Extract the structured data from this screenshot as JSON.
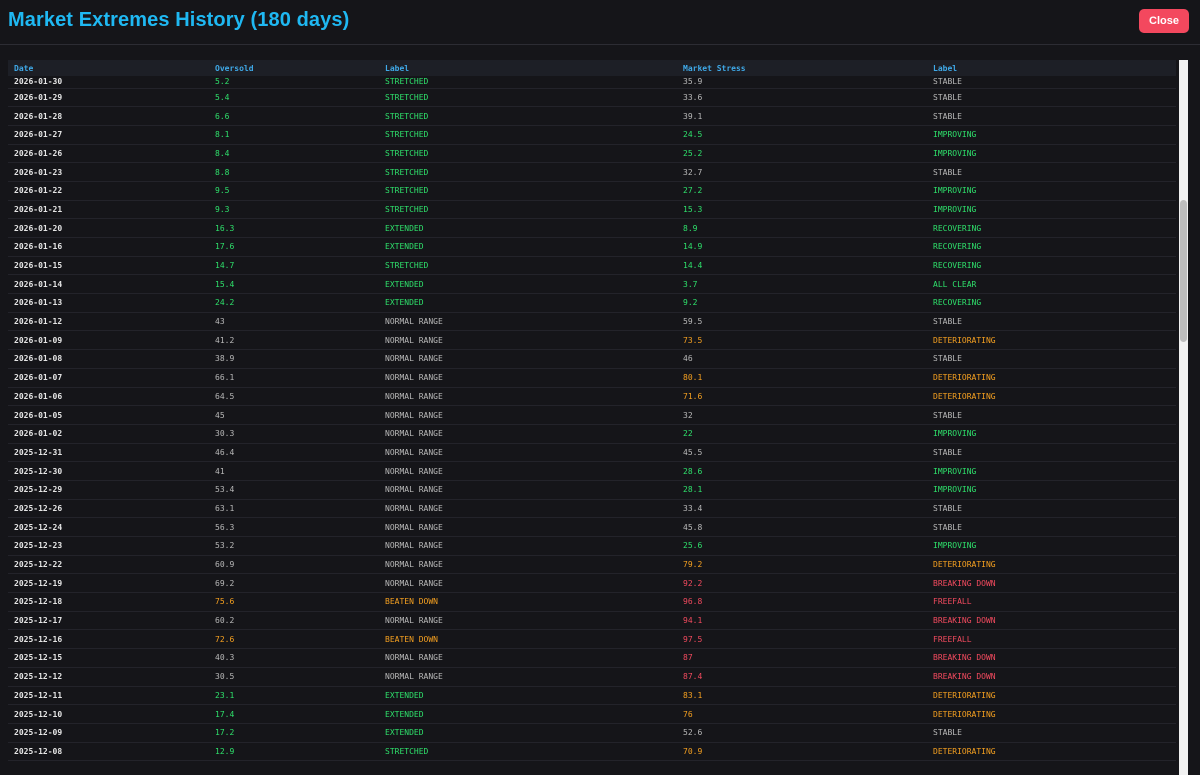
{
  "header": {
    "title": "Market Extremes History (180 days)",
    "close_label": "Close"
  },
  "table": {
    "columns": [
      "Date",
      "Oversold",
      "Label",
      "Market Stress",
      "Label"
    ],
    "rows": [
      {
        "date": "2026-01-30",
        "oversold": "5.2",
        "os_label": "STRETCHED",
        "os_color": "#2ee06b",
        "stress": "35.9",
        "st_label": "STABLE",
        "st_color": "#b8b8b8"
      },
      {
        "date": "2026-01-29",
        "oversold": "5.4",
        "os_label": "STRETCHED",
        "os_color": "#2ee06b",
        "stress": "33.6",
        "st_label": "STABLE",
        "st_color": "#b8b8b8"
      },
      {
        "date": "2026-01-28",
        "oversold": "6.6",
        "os_label": "STRETCHED",
        "os_color": "#2ee06b",
        "stress": "39.1",
        "st_label": "STABLE",
        "st_color": "#b8b8b8"
      },
      {
        "date": "2026-01-27",
        "oversold": "8.1",
        "os_label": "STRETCHED",
        "os_color": "#2ee06b",
        "stress": "24.5",
        "st_label": "IMPROVING",
        "st_color": "#2ee06b"
      },
      {
        "date": "2026-01-26",
        "oversold": "8.4",
        "os_label": "STRETCHED",
        "os_color": "#2ee06b",
        "stress": "25.2",
        "st_label": "IMPROVING",
        "st_color": "#2ee06b"
      },
      {
        "date": "2026-01-23",
        "oversold": "8.8",
        "os_label": "STRETCHED",
        "os_color": "#2ee06b",
        "stress": "32.7",
        "st_label": "STABLE",
        "st_color": "#b8b8b8"
      },
      {
        "date": "2026-01-22",
        "oversold": "9.5",
        "os_label": "STRETCHED",
        "os_color": "#2ee06b",
        "stress": "27.2",
        "st_label": "IMPROVING",
        "st_color": "#2ee06b"
      },
      {
        "date": "2026-01-21",
        "oversold": "9.3",
        "os_label": "STRETCHED",
        "os_color": "#2ee06b",
        "stress": "15.3",
        "st_label": "IMPROVING",
        "st_color": "#2ee06b"
      },
      {
        "date": "2026-01-20",
        "oversold": "16.3",
        "os_label": "EXTENDED",
        "os_color": "#2ee06b",
        "stress": "8.9",
        "st_label": "RECOVERING",
        "st_color": "#2ee06b"
      },
      {
        "date": "2026-01-16",
        "oversold": "17.6",
        "os_label": "EXTENDED",
        "os_color": "#2ee06b",
        "stress": "14.9",
        "st_label": "RECOVERING",
        "st_color": "#2ee06b"
      },
      {
        "date": "2026-01-15",
        "oversold": "14.7",
        "os_label": "STRETCHED",
        "os_color": "#2ee06b",
        "stress": "14.4",
        "st_label": "RECOVERING",
        "st_color": "#2ee06b"
      },
      {
        "date": "2026-01-14",
        "oversold": "15.4",
        "os_label": "EXTENDED",
        "os_color": "#2ee06b",
        "stress": "3.7",
        "st_label": "ALL CLEAR",
        "st_color": "#2ee06b"
      },
      {
        "date": "2026-01-13",
        "oversold": "24.2",
        "os_label": "EXTENDED",
        "os_color": "#2ee06b",
        "stress": "9.2",
        "st_label": "RECOVERING",
        "st_color": "#2ee06b"
      },
      {
        "date": "2026-01-12",
        "oversold": "43",
        "os_label": "NORMAL RANGE",
        "os_color": "#b8b8b8",
        "stress": "59.5",
        "st_label": "STABLE",
        "st_color": "#b8b8b8"
      },
      {
        "date": "2026-01-09",
        "oversold": "41.2",
        "os_label": "NORMAL RANGE",
        "os_color": "#b8b8b8",
        "stress": "73.5",
        "st_label": "DETERIORATING",
        "st_color": "#f5a020"
      },
      {
        "date": "2026-01-08",
        "oversold": "38.9",
        "os_label": "NORMAL RANGE",
        "os_color": "#b8b8b8",
        "stress": "46",
        "st_label": "STABLE",
        "st_color": "#b8b8b8"
      },
      {
        "date": "2026-01-07",
        "oversold": "66.1",
        "os_label": "NORMAL RANGE",
        "os_color": "#b8b8b8",
        "stress": "80.1",
        "st_label": "DETERIORATING",
        "st_color": "#f5a020"
      },
      {
        "date": "2026-01-06",
        "oversold": "64.5",
        "os_label": "NORMAL RANGE",
        "os_color": "#b8b8b8",
        "stress": "71.6",
        "st_label": "DETERIORATING",
        "st_color": "#f5a020"
      },
      {
        "date": "2026-01-05",
        "oversold": "45",
        "os_label": "NORMAL RANGE",
        "os_color": "#b8b8b8",
        "stress": "32",
        "st_label": "STABLE",
        "st_color": "#b8b8b8"
      },
      {
        "date": "2026-01-02",
        "oversold": "30.3",
        "os_label": "NORMAL RANGE",
        "os_color": "#b8b8b8",
        "stress": "22",
        "st_label": "IMPROVING",
        "st_color": "#2ee06b"
      },
      {
        "date": "2025-12-31",
        "oversold": "46.4",
        "os_label": "NORMAL RANGE",
        "os_color": "#b8b8b8",
        "stress": "45.5",
        "st_label": "STABLE",
        "st_color": "#b8b8b8"
      },
      {
        "date": "2025-12-30",
        "oversold": "41",
        "os_label": "NORMAL RANGE",
        "os_color": "#b8b8b8",
        "stress": "28.6",
        "st_label": "IMPROVING",
        "st_color": "#2ee06b"
      },
      {
        "date": "2025-12-29",
        "oversold": "53.4",
        "os_label": "NORMAL RANGE",
        "os_color": "#b8b8b8",
        "stress": "28.1",
        "st_label": "IMPROVING",
        "st_color": "#2ee06b"
      },
      {
        "date": "2025-12-26",
        "oversold": "63.1",
        "os_label": "NORMAL RANGE",
        "os_color": "#b8b8b8",
        "stress": "33.4",
        "st_label": "STABLE",
        "st_color": "#b8b8b8"
      },
      {
        "date": "2025-12-24",
        "oversold": "56.3",
        "os_label": "NORMAL RANGE",
        "os_color": "#b8b8b8",
        "stress": "45.8",
        "st_label": "STABLE",
        "st_color": "#b8b8b8"
      },
      {
        "date": "2025-12-23",
        "oversold": "53.2",
        "os_label": "NORMAL RANGE",
        "os_color": "#b8b8b8",
        "stress": "25.6",
        "st_label": "IMPROVING",
        "st_color": "#2ee06b"
      },
      {
        "date": "2025-12-22",
        "oversold": "60.9",
        "os_label": "NORMAL RANGE",
        "os_color": "#b8b8b8",
        "stress": "79.2",
        "st_label": "DETERIORATING",
        "st_color": "#f5a020"
      },
      {
        "date": "2025-12-19",
        "oversold": "69.2",
        "os_label": "NORMAL RANGE",
        "os_color": "#b8b8b8",
        "stress": "92.2",
        "st_label": "BREAKING DOWN",
        "st_color": "#f24a5e"
      },
      {
        "date": "2025-12-18",
        "oversold": "75.6",
        "os_label": "BEATEN DOWN",
        "os_color": "#f5a020",
        "stress": "96.8",
        "st_label": "FREEFALL",
        "st_color": "#f24a5e"
      },
      {
        "date": "2025-12-17",
        "oversold": "60.2",
        "os_label": "NORMAL RANGE",
        "os_color": "#b8b8b8",
        "stress": "94.1",
        "st_label": "BREAKING DOWN",
        "st_color": "#f24a5e"
      },
      {
        "date": "2025-12-16",
        "oversold": "72.6",
        "os_label": "BEATEN DOWN",
        "os_color": "#f5a020",
        "stress": "97.5",
        "st_label": "FREEFALL",
        "st_color": "#f24a5e"
      },
      {
        "date": "2025-12-15",
        "oversold": "40.3",
        "os_label": "NORMAL RANGE",
        "os_color": "#b8b8b8",
        "stress": "87",
        "st_label": "BREAKING DOWN",
        "st_color": "#f24a5e"
      },
      {
        "date": "2025-12-12",
        "oversold": "30.5",
        "os_label": "NORMAL RANGE",
        "os_color": "#b8b8b8",
        "stress": "87.4",
        "st_label": "BREAKING DOWN",
        "st_color": "#f24a5e"
      },
      {
        "date": "2025-12-11",
        "oversold": "23.1",
        "os_label": "EXTENDED",
        "os_color": "#2ee06b",
        "stress": "83.1",
        "st_label": "DETERIORATING",
        "st_color": "#f5a020"
      },
      {
        "date": "2025-12-10",
        "oversold": "17.4",
        "os_label": "EXTENDED",
        "os_color": "#2ee06b",
        "stress": "76",
        "st_label": "DETERIORATING",
        "st_color": "#f5a020"
      },
      {
        "date": "2025-12-09",
        "oversold": "17.2",
        "os_label": "EXTENDED",
        "os_color": "#2ee06b",
        "stress": "52.6",
        "st_label": "STABLE",
        "st_color": "#b8b8b8"
      },
      {
        "date": "2025-12-08",
        "oversold": "12.9",
        "os_label": "STRETCHED",
        "os_color": "#2ee06b",
        "stress": "70.9",
        "st_label": "DETERIORATING",
        "st_color": "#f5a020"
      }
    ]
  }
}
